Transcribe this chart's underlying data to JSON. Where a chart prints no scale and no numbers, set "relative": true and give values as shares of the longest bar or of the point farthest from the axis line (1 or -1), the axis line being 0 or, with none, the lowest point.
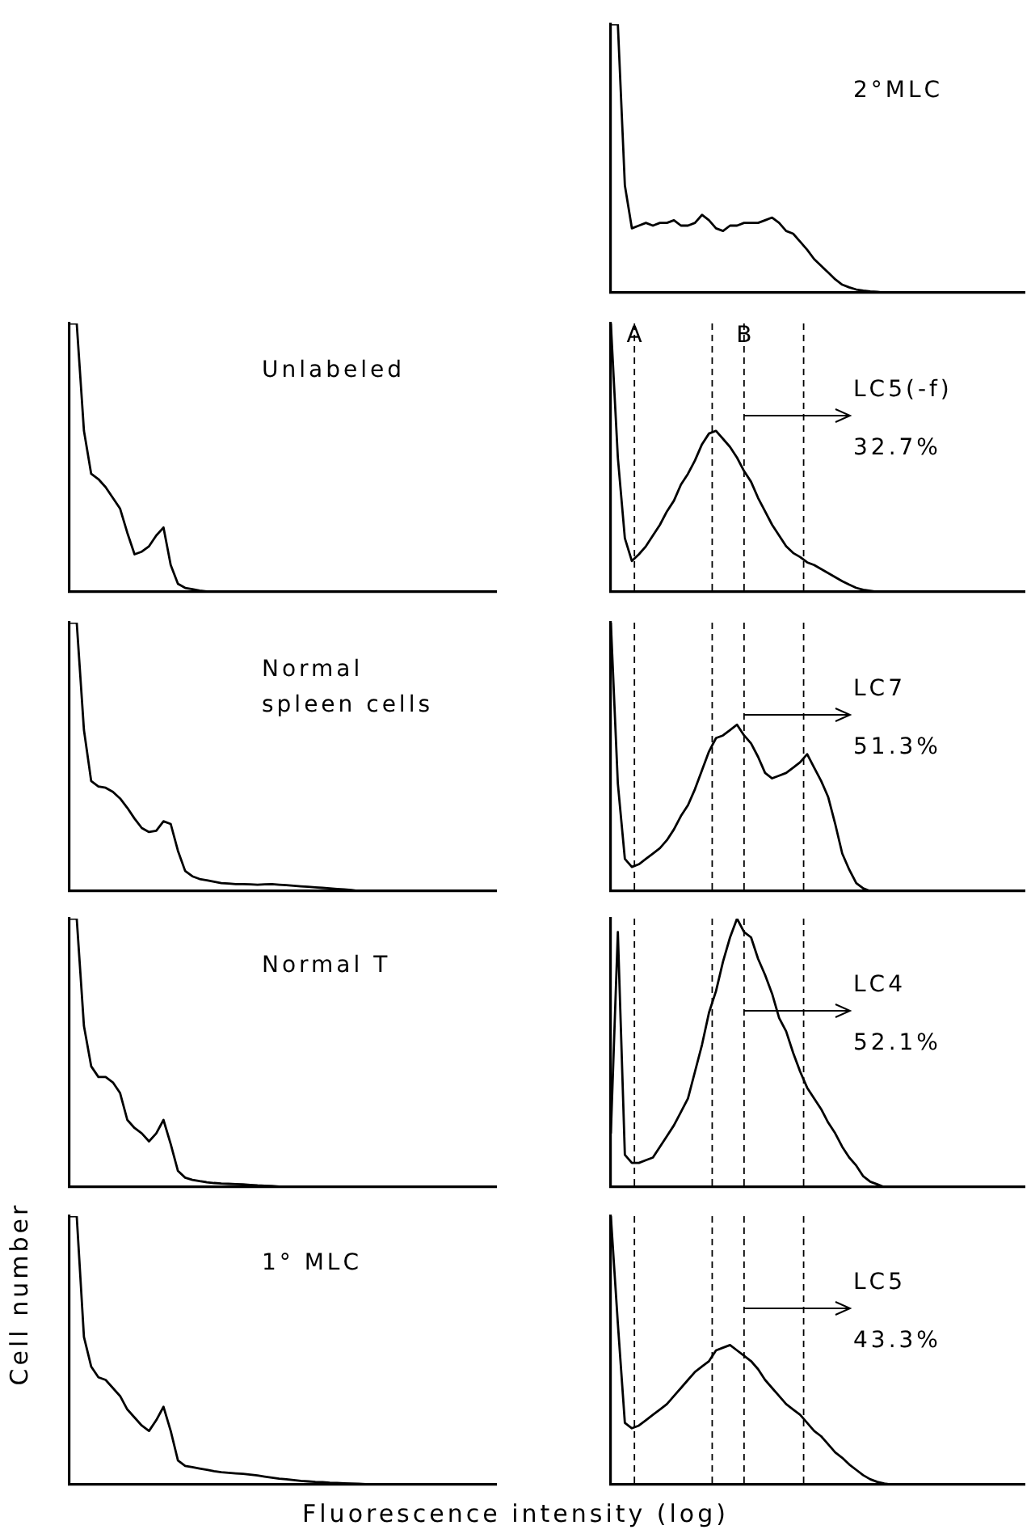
{
  "chart_data": [
    {
      "type": "line",
      "relative": true,
      "title": "2°MLC",
      "color": "#000000",
      "marker": "none",
      "tick_labels": false,
      "categories": [
        null,
        null,
        null,
        null,
        null,
        null,
        null,
        null,
        null,
        null,
        null,
        null,
        null,
        null,
        null,
        null,
        null,
        null,
        null,
        null,
        null,
        null,
        null,
        null,
        null,
        null,
        null,
        null,
        null,
        null,
        null,
        null,
        null,
        null,
        null,
        null,
        null,
        null,
        null,
        null,
        null,
        null,
        null,
        null,
        null,
        null,
        null,
        null,
        null,
        null,
        null,
        null,
        null,
        null,
        null,
        null,
        null,
        null,
        null,
        null
      ],
      "values": [
        1,
        1,
        0.4,
        0.24,
        0.25,
        0.26,
        0.25,
        0.26,
        0.26,
        0.27,
        0.25,
        0.25,
        0.26,
        0.29,
        0.27,
        0.24,
        0.23,
        0.25,
        0.25,
        0.26,
        0.26,
        0.26,
        0.27,
        0.28,
        0.26,
        0.23,
        0.22,
        0.19,
        0.16,
        0.125,
        0.1,
        0.075,
        0.05,
        0.03,
        0.02,
        0.012,
        0.008,
        0.005,
        0.003,
        0,
        0,
        0,
        0,
        0,
        0,
        0,
        0,
        0,
        0,
        0,
        0,
        0,
        0,
        0,
        0,
        0,
        0,
        0,
        0,
        0
      ]
    },
    {
      "type": "line",
      "relative": true,
      "title": "Unlabeled",
      "color": "#000000",
      "marker": "none",
      "tick_labels": false,
      "categories": [
        null,
        null,
        null,
        null,
        null,
        null,
        null,
        null,
        null,
        null,
        null,
        null,
        null,
        null,
        null,
        null,
        null,
        null,
        null,
        null,
        null,
        null,
        null,
        null,
        null,
        null,
        null,
        null,
        null,
        null,
        null,
        null,
        null,
        null,
        null,
        null,
        null,
        null,
        null,
        null,
        null,
        null,
        null,
        null,
        null,
        null,
        null,
        null,
        null,
        null,
        null,
        null,
        null,
        null,
        null,
        null,
        null,
        null,
        null,
        null
      ],
      "values": [
        1,
        1,
        0.6,
        0.44,
        0.42,
        0.39,
        0.35,
        0.31,
        0.22,
        0.14,
        0.15,
        0.17,
        0.21,
        0.24,
        0.1,
        0.03,
        0.015,
        0.01,
        0.005,
        0.002,
        0,
        0,
        0,
        0,
        0,
        0,
        0,
        0,
        0,
        0,
        0,
        0,
        0,
        0,
        0,
        0,
        0,
        0,
        0,
        0,
        0,
        0,
        0,
        0,
        0,
        0,
        0,
        0,
        0,
        0,
        0,
        0,
        0,
        0,
        0,
        0,
        0,
        0,
        0,
        0
      ]
    },
    {
      "type": "line",
      "relative": true,
      "title": "LC5(-f)",
      "annotations": [
        "A",
        "B",
        "32.7%"
      ],
      "color": "#000000",
      "marker": "none",
      "tick_labels": false,
      "categories": [
        null,
        null,
        null,
        null,
        null,
        null,
        null,
        null,
        null,
        null,
        null,
        null,
        null,
        null,
        null,
        null,
        null,
        null,
        null,
        null,
        null,
        null,
        null,
        null,
        null,
        null,
        null,
        null,
        null,
        null,
        null,
        null,
        null,
        null,
        null,
        null,
        null,
        null,
        null,
        null,
        null,
        null,
        null,
        null,
        null,
        null,
        null,
        null,
        null,
        null,
        null,
        null,
        null,
        null,
        null,
        null,
        null,
        null,
        null,
        null
      ],
      "values": [
        1,
        0.5,
        0.2,
        0.115,
        0.14,
        0.17,
        0.21,
        0.25,
        0.3,
        0.34,
        0.4,
        0.44,
        0.49,
        0.55,
        0.59,
        0.6,
        0.57,
        0.54,
        0.5,
        0.45,
        0.41,
        0.35,
        0.3,
        0.25,
        0.21,
        0.17,
        0.145,
        0.13,
        0.11,
        0.1,
        0.085,
        0.07,
        0.055,
        0.04,
        0.027,
        0.015,
        0.008,
        0.004,
        0,
        0,
        0,
        0,
        0,
        0,
        0,
        0,
        0,
        0,
        0,
        0,
        0,
        0,
        0,
        0,
        0,
        0,
        0,
        0,
        0,
        0
      ]
    },
    {
      "type": "line",
      "relative": true,
      "title": "Normal\nspleen cells",
      "color": "#000000",
      "marker": "none",
      "tick_labels": false,
      "categories": [
        null,
        null,
        null,
        null,
        null,
        null,
        null,
        null,
        null,
        null,
        null,
        null,
        null,
        null,
        null,
        null,
        null,
        null,
        null,
        null,
        null,
        null,
        null,
        null,
        null,
        null,
        null,
        null,
        null,
        null,
        null,
        null,
        null,
        null,
        null,
        null,
        null,
        null,
        null,
        null,
        null,
        null,
        null,
        null,
        null,
        null,
        null,
        null,
        null,
        null,
        null,
        null,
        null,
        null,
        null,
        null,
        null,
        null,
        null,
        null
      ],
      "values": [
        1,
        1,
        0.6,
        0.41,
        0.39,
        0.385,
        0.37,
        0.345,
        0.31,
        0.27,
        0.235,
        0.22,
        0.225,
        0.26,
        0.25,
        0.15,
        0.075,
        0.055,
        0.045,
        0.04,
        0.035,
        0.03,
        0.028,
        0.026,
        0.026,
        0.025,
        0.024,
        0.025,
        0.026,
        0.024,
        0.022,
        0.02,
        0.018,
        0.016,
        0.014,
        0.012,
        0.01,
        0.008,
        0.006,
        0.004,
        0,
        0,
        0,
        0,
        0,
        0,
        0,
        0,
        0,
        0,
        0,
        0,
        0,
        0,
        0,
        0,
        0,
        0,
        0,
        0
      ]
    },
    {
      "type": "line",
      "relative": true,
      "title": "LC7",
      "annotations": [
        "51.3%"
      ],
      "color": "#000000",
      "marker": "none",
      "tick_labels": false,
      "categories": [
        null,
        null,
        null,
        null,
        null,
        null,
        null,
        null,
        null,
        null,
        null,
        null,
        null,
        null,
        null,
        null,
        null,
        null,
        null,
        null,
        null,
        null,
        null,
        null,
        null,
        null,
        null,
        null,
        null,
        null,
        null,
        null,
        null,
        null,
        null,
        null,
        null,
        null,
        null,
        null,
        null,
        null,
        null,
        null,
        null,
        null,
        null,
        null,
        null,
        null,
        null,
        null,
        null,
        null,
        null,
        null,
        null,
        null,
        null,
        null
      ],
      "values": [
        1,
        0.4,
        0.12,
        0.09,
        0.1,
        0.12,
        0.14,
        0.16,
        0.19,
        0.23,
        0.28,
        0.32,
        0.38,
        0.45,
        0.52,
        0.57,
        0.58,
        0.6,
        0.62,
        0.58,
        0.55,
        0.5,
        0.44,
        0.42,
        0.43,
        0.44,
        0.46,
        0.48,
        0.51,
        0.46,
        0.41,
        0.35,
        0.25,
        0.14,
        0.08,
        0.03,
        0.01,
        0,
        0,
        0,
        0,
        0,
        0,
        0,
        0,
        0,
        0,
        0,
        0,
        0,
        0,
        0,
        0,
        0,
        0,
        0,
        0,
        0,
        0,
        0
      ]
    },
    {
      "type": "line",
      "relative": true,
      "title": "Normal T",
      "color": "#000000",
      "marker": "none",
      "tick_labels": false,
      "categories": [
        null,
        null,
        null,
        null,
        null,
        null,
        null,
        null,
        null,
        null,
        null,
        null,
        null,
        null,
        null,
        null,
        null,
        null,
        null,
        null,
        null,
        null,
        null,
        null,
        null,
        null,
        null,
        null,
        null,
        null,
        null,
        null,
        null,
        null,
        null,
        null,
        null,
        null,
        null,
        null,
        null,
        null,
        null,
        null,
        null,
        null,
        null,
        null,
        null,
        null,
        null,
        null,
        null,
        null,
        null,
        null,
        null,
        null,
        null,
        null
      ],
      "values": [
        1,
        1,
        0.6,
        0.45,
        0.41,
        0.41,
        0.39,
        0.35,
        0.25,
        0.22,
        0.2,
        0.17,
        0.2,
        0.25,
        0.16,
        0.06,
        0.035,
        0.027,
        0.022,
        0.018,
        0.015,
        0.013,
        0.012,
        0.011,
        0.01,
        0.008,
        0.006,
        0.005,
        0.004,
        0.002,
        0,
        0,
        0,
        0,
        0,
        0,
        0,
        0,
        0,
        0,
        0,
        0,
        0,
        0,
        0,
        0,
        0,
        0,
        0,
        0,
        0,
        0,
        0,
        0,
        0,
        0,
        0,
        0,
        0,
        0
      ]
    },
    {
      "type": "line",
      "relative": true,
      "title": "LC4",
      "annotations": [
        "52.1%"
      ],
      "color": "#000000",
      "marker": "none",
      "tick_labels": false,
      "categories": [
        null,
        null,
        null,
        null,
        null,
        null,
        null,
        null,
        null,
        null,
        null,
        null,
        null,
        null,
        null,
        null,
        null,
        null,
        null,
        null,
        null,
        null,
        null,
        null,
        null,
        null,
        null,
        null,
        null,
        null,
        null,
        null,
        null,
        null,
        null,
        null,
        null,
        null,
        null,
        null,
        null,
        null,
        null,
        null,
        null,
        null,
        null,
        null,
        null,
        null,
        null,
        null,
        null,
        null,
        null,
        null,
        null,
        null,
        null,
        null
      ],
      "values": [
        0.2,
        0.95,
        0.12,
        0.09,
        0.09,
        0.1,
        0.11,
        0.15,
        0.19,
        0.23,
        0.28,
        0.33,
        0.43,
        0.53,
        0.65,
        0.73,
        0.84,
        0.93,
        1,
        0.95,
        0.93,
        0.85,
        0.79,
        0.72,
        0.63,
        0.58,
        0.5,
        0.43,
        0.37,
        0.33,
        0.29,
        0.24,
        0.2,
        0.15,
        0.11,
        0.08,
        0.04,
        0.02,
        0.01,
        0,
        0,
        0,
        0,
        0,
        0,
        0,
        0,
        0,
        0,
        0,
        0,
        0,
        0,
        0,
        0,
        0,
        0,
        0,
        0,
        0
      ]
    },
    {
      "type": "line",
      "relative": true,
      "title": "1° MLC",
      "xlabel": "Fluorescence intensity (log)",
      "ylabel": "Cell number",
      "color": "#000000",
      "marker": "none",
      "tick_labels": false,
      "categories": [
        null,
        null,
        null,
        null,
        null,
        null,
        null,
        null,
        null,
        null,
        null,
        null,
        null,
        null,
        null,
        null,
        null,
        null,
        null,
        null,
        null,
        null,
        null,
        null,
        null,
        null,
        null,
        null,
        null,
        null,
        null,
        null,
        null,
        null,
        null,
        null,
        null,
        null,
        null,
        null,
        null,
        null,
        null,
        null,
        null,
        null,
        null,
        null,
        null,
        null,
        null,
        null,
        null,
        null,
        null,
        null,
        null,
        null,
        null,
        null
      ],
      "values": [
        1,
        1,
        0.55,
        0.44,
        0.4,
        0.39,
        0.36,
        0.33,
        0.28,
        0.25,
        0.22,
        0.2,
        0.24,
        0.29,
        0.2,
        0.09,
        0.07,
        0.065,
        0.06,
        0.055,
        0.05,
        0.046,
        0.044,
        0.042,
        0.04,
        0.037,
        0.034,
        0.03,
        0.026,
        0.022,
        0.02,
        0.017,
        0.014,
        0.012,
        0.01,
        0.009,
        0.007,
        0.006,
        0.005,
        0.004,
        0.003,
        0.002,
        0.001,
        0,
        0,
        0,
        0,
        0,
        0,
        0,
        0,
        0,
        0,
        0,
        0,
        0,
        0,
        0,
        0,
        0
      ]
    },
    {
      "type": "line",
      "relative": true,
      "title": "LC5",
      "annotations": [
        "43.3%"
      ],
      "color": "#000000",
      "marker": "none",
      "tick_labels": false,
      "categories": [
        null,
        null,
        null,
        null,
        null,
        null,
        null,
        null,
        null,
        null,
        null,
        null,
        null,
        null,
        null,
        null,
        null,
        null,
        null,
        null,
        null,
        null,
        null,
        null,
        null,
        null,
        null,
        null,
        null,
        null,
        null,
        null,
        null,
        null,
        null,
        null,
        null,
        null,
        null,
        null,
        null,
        null,
        null,
        null,
        null,
        null,
        null,
        null,
        null,
        null,
        null,
        null,
        null,
        null,
        null,
        null,
        null,
        null,
        null,
        null
      ],
      "values": [
        1,
        0.6,
        0.23,
        0.21,
        0.22,
        0.24,
        0.26,
        0.28,
        0.3,
        0.33,
        0.36,
        0.39,
        0.42,
        0.44,
        0.46,
        0.5,
        0.51,
        0.52,
        0.5,
        0.48,
        0.46,
        0.43,
        0.39,
        0.36,
        0.33,
        0.3,
        0.28,
        0.26,
        0.23,
        0.2,
        0.18,
        0.15,
        0.12,
        0.1,
        0.075,
        0.055,
        0.035,
        0.02,
        0.01,
        0.004,
        0,
        0,
        0,
        0,
        0,
        0,
        0,
        0,
        0,
        0,
        0,
        0,
        0,
        0,
        0,
        0,
        0,
        0,
        0,
        0
      ]
    }
  ]
}
